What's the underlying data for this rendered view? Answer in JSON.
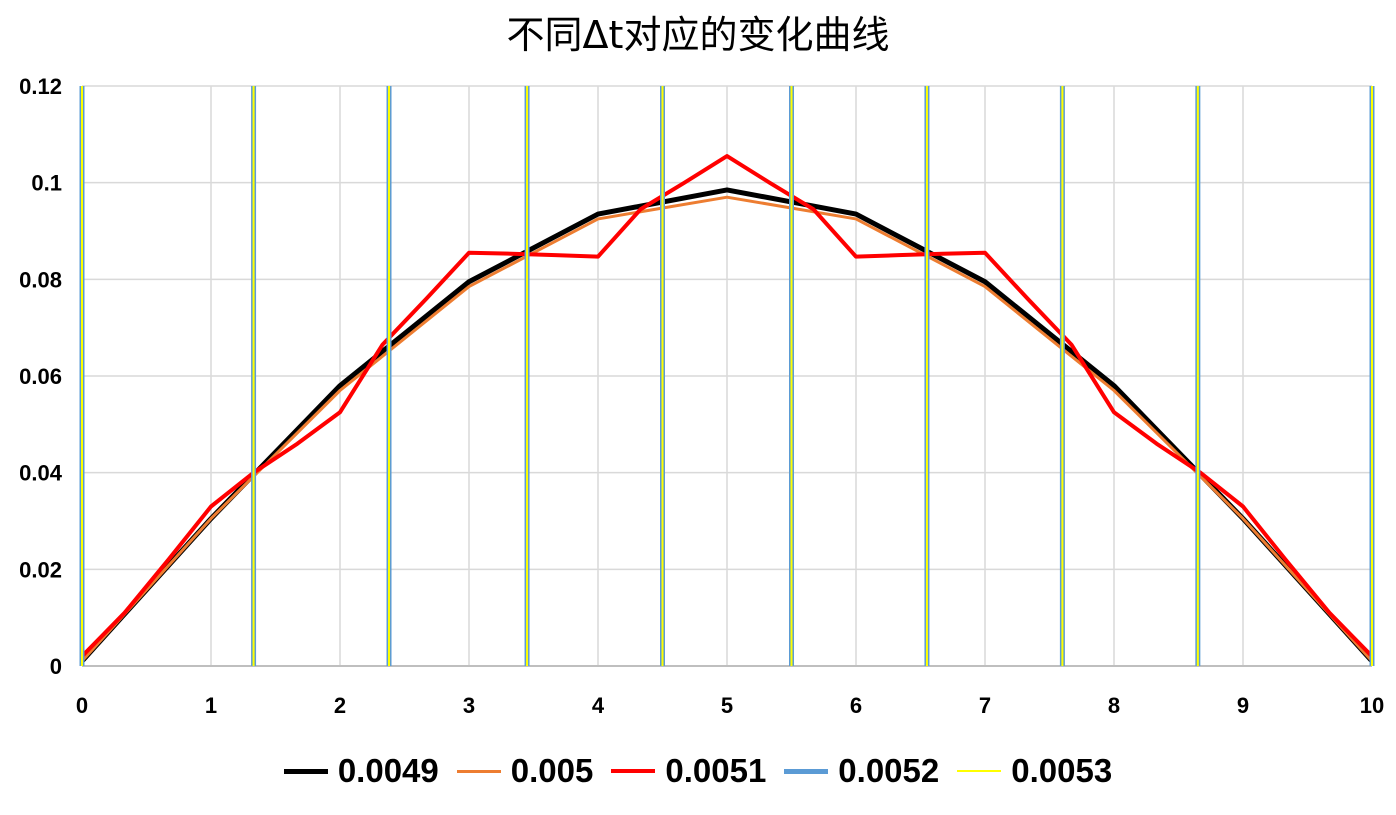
{
  "chart_data": {
    "type": "line",
    "title": "不同Δt对应的变化曲线",
    "xlabel": "",
    "ylabel": "",
    "xlim": [
      0,
      10
    ],
    "ylim": [
      0,
      0.12
    ],
    "x_ticks": [
      "0",
      "1",
      "2",
      "3",
      "4",
      "5",
      "6",
      "7",
      "8",
      "9",
      "10"
    ],
    "y_ticks": [
      "0",
      "0.02",
      "0.04",
      "0.06",
      "0.08",
      "0.1",
      "0.12"
    ],
    "grid": true,
    "legend_position": "bottom",
    "series": [
      {
        "name": "0.0049",
        "color": "#000000",
        "x": [
          0,
          1,
          2,
          3,
          4,
          5,
          6,
          7,
          8,
          9,
          10
        ],
        "y": [
          0.001,
          0.0305,
          0.058,
          0.0795,
          0.0935,
          0.0985,
          0.0935,
          0.0795,
          0.058,
          0.0305,
          0.001
        ]
      },
      {
        "name": "0.005",
        "color": "#ED7D31",
        "x": [
          0,
          1,
          2,
          3,
          4,
          5,
          6,
          7,
          8,
          9,
          10
        ],
        "y": [
          0.001,
          0.0305,
          0.057,
          0.0785,
          0.0925,
          0.097,
          0.0925,
          0.0785,
          0.057,
          0.0305,
          0.001
        ]
      },
      {
        "name": "0.0051",
        "color": "#FF0000",
        "x": [
          0,
          0.33,
          0.67,
          1,
          1.33,
          1.67,
          2,
          2.33,
          2.67,
          3,
          3.33,
          3.67,
          4,
          4.33,
          4.67,
          5,
          5.33,
          5.67,
          6,
          6.33,
          6.67,
          7,
          7.33,
          7.67,
          8,
          8.33,
          8.67,
          9,
          9.33,
          9.67,
          10
        ],
        "y": [
          0.002,
          0.011,
          0.022,
          0.033,
          0.04,
          0.046,
          0.0525,
          0.0665,
          0.076,
          0.0855,
          0.0853,
          0.085,
          0.0847,
          0.0945,
          0.1,
          0.1055,
          0.1,
          0.0945,
          0.0847,
          0.085,
          0.0853,
          0.0855,
          0.076,
          0.0665,
          0.0525,
          0.046,
          0.04,
          0.033,
          0.022,
          0.011,
          0.002
        ]
      },
      {
        "name": "0.0052",
        "color": "#5B9BD5",
        "x": [
          0,
          1.33,
          2.38,
          3.45,
          4.5,
          5.5,
          6.55,
          7.6,
          8.65,
          10
        ],
        "y": [
          0.12,
          0.12,
          0.12,
          0.12,
          0.12,
          0.12,
          0.12,
          0.12,
          0.12,
          0.12
        ]
      },
      {
        "name": "0.0053",
        "color": "#FFFF00",
        "x": [
          0,
          1.33,
          2.38,
          3.45,
          4.5,
          5.5,
          6.55,
          7.6,
          8.65,
          10
        ],
        "y": [
          0.12,
          0.12,
          0.12,
          0.12,
          0.12,
          0.12,
          0.12,
          0.12,
          0.12,
          0.12
        ]
      }
    ]
  }
}
